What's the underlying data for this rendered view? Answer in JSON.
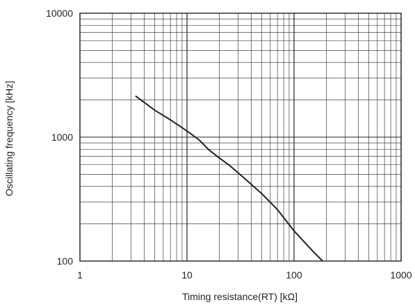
{
  "chart_data": {
    "type": "line",
    "title": "",
    "xlabel": "Timing resistance(RT) [kΩ]",
    "ylabel": "Oscillating frequency [kHz]",
    "x_scale": "log",
    "y_scale": "log",
    "xlim": [
      1,
      1000
    ],
    "ylim": [
      100,
      10000
    ],
    "x_ticks": [
      "1",
      "10",
      "100",
      "1000"
    ],
    "y_ticks": [
      "100",
      "1000",
      "10000"
    ],
    "grid": true,
    "series": [
      {
        "x": [
          3.3,
          5,
          7,
          10,
          13,
          16,
          20,
          25,
          33,
          50,
          70,
          100,
          150,
          185
        ],
        "y": [
          2150,
          1650,
          1380,
          1120,
          950,
          790,
          680,
          590,
          480,
          350,
          260,
          175,
          120,
          100
        ]
      }
    ]
  }
}
